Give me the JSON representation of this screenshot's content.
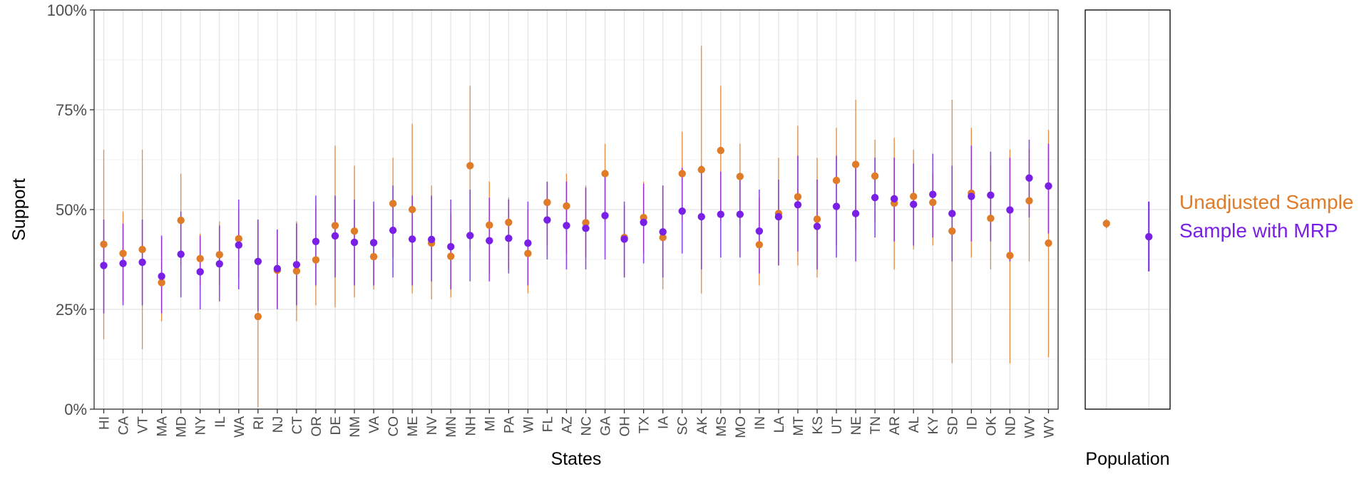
{
  "chart_data": {
    "type": "scatter",
    "xlabel": "States",
    "ylabel": "Support",
    "ylim": [
      0,
      100
    ],
    "y_ticks": [
      "0%",
      "25%",
      "50%",
      "75%",
      "100%"
    ],
    "y_tick_values": [
      0,
      25,
      50,
      75,
      100
    ],
    "grid": true,
    "categories": [
      "HI",
      "CA",
      "VT",
      "MA",
      "MD",
      "NY",
      "IL",
      "WA",
      "RI",
      "NJ",
      "CT",
      "OR",
      "DE",
      "NM",
      "VA",
      "CO",
      "ME",
      "NV",
      "MN",
      "NH",
      "MI",
      "PA",
      "WI",
      "FL",
      "AZ",
      "NC",
      "GA",
      "OH",
      "TX",
      "IA",
      "SC",
      "AK",
      "MS",
      "MO",
      "IN",
      "LA",
      "MT",
      "KS",
      "UT",
      "NE",
      "TN",
      "AR",
      "AL",
      "KY",
      "SD",
      "ID",
      "OK",
      "ND",
      "WV",
      "WY"
    ],
    "series": [
      {
        "name": "Unadjusted Sample",
        "color": "#E07B28",
        "values": [
          41.3,
          39.0,
          40.0,
          31.7,
          47.3,
          37.7,
          38.7,
          42.7,
          23.2,
          34.8,
          34.6,
          37.4,
          46.0,
          44.6,
          38.2,
          51.5,
          50.0,
          41.6,
          38.3,
          61.0,
          46.1,
          46.8,
          39.0,
          51.8,
          50.9,
          46.7,
          59.0,
          43.0,
          48.0,
          43.0,
          59.0,
          60.0,
          64.8,
          58.3,
          41.2,
          49.0,
          53.2,
          47.6,
          57.3,
          61.3,
          58.4,
          51.6,
          53.3,
          51.8,
          44.6,
          54.1,
          47.8,
          38.5,
          52.2,
          41.6
        ],
        "lower": [
          17.5,
          27.0,
          15.0,
          22.0,
          36.0,
          31.0,
          31.0,
          33.0,
          0.5,
          25.5,
          22.0,
          26.0,
          25.5,
          28.0,
          30.0,
          38.0,
          29.0,
          27.5,
          28.0,
          40.0,
          34.0,
          35.0,
          29.0,
          41.0,
          39.0,
          38.0,
          47.0,
          33.0,
          39.0,
          30.0,
          47.0,
          29.0,
          47.0,
          46.0,
          31.0,
          36.0,
          36.0,
          33.0,
          41.0,
          45.0,
          47.0,
          35.0,
          40.0,
          41.0,
          11.5,
          38.0,
          35.0,
          11.5,
          37.0,
          13.0
        ],
        "upper": [
          65.0,
          49.5,
          65.0,
          43.0,
          59.0,
          44.0,
          47.0,
          50.0,
          47.5,
          45.0,
          47.0,
          51.0,
          66.0,
          61.0,
          50.0,
          63.0,
          71.5,
          56.0,
          49.0,
          81.0,
          57.0,
          53.0,
          50.0,
          57.0,
          59.0,
          56.0,
          66.5,
          51.0,
          57.0,
          56.0,
          69.5,
          91.0,
          81.0,
          66.5,
          53.0,
          63.0,
          71.0,
          63.0,
          70.5,
          77.5,
          67.5,
          68.0,
          65.0,
          59.0,
          77.5,
          70.5,
          61.0,
          65.0,
          65.0,
          70.0
        ]
      },
      {
        "name": "Sample with MRP",
        "color": "#7A1FE6",
        "values": [
          36.0,
          36.5,
          36.8,
          33.3,
          38.8,
          34.4,
          36.4,
          41.1,
          37.0,
          35.2,
          36.2,
          42.0,
          43.4,
          41.8,
          41.7,
          44.8,
          42.6,
          42.5,
          40.7,
          43.5,
          42.2,
          42.8,
          41.6,
          47.4,
          46.0,
          45.3,
          48.5,
          42.6,
          46.8,
          44.4,
          49.6,
          48.2,
          48.8,
          48.8,
          44.6,
          48.2,
          51.2,
          45.8,
          50.8,
          49.0,
          53.0,
          52.7,
          51.3,
          53.8,
          49.0,
          53.3,
          53.6,
          49.9,
          57.9,
          55.9
        ],
        "lower": [
          24.0,
          26.0,
          26.0,
          24.0,
          28.0,
          25.0,
          27.0,
          30.0,
          24.5,
          25.0,
          26.0,
          31.0,
          33.0,
          31.0,
          31.0,
          33.0,
          31.0,
          32.0,
          30.0,
          32.0,
          32.0,
          34.0,
          31.0,
          37.5,
          35.0,
          35.0,
          37.5,
          33.0,
          36.5,
          33.0,
          39.0,
          35.0,
          38.0,
          38.0,
          34.0,
          36.0,
          39.5,
          35.0,
          38.0,
          37.0,
          43.0,
          42.0,
          41.0,
          43.0,
          37.0,
          42.0,
          42.0,
          37.0,
          48.0,
          44.0
        ],
        "upper": [
          47.5,
          46.5,
          47.5,
          43.5,
          49.5,
          43.5,
          46.0,
          52.5,
          47.5,
          45.0,
          46.5,
          53.5,
          53.5,
          52.5,
          52.0,
          56.0,
          53.5,
          53.5,
          52.5,
          55.0,
          53.0,
          52.5,
          52.0,
          57.0,
          57.0,
          55.5,
          59.5,
          52.0,
          56.5,
          56.0,
          60.5,
          61.0,
          59.5,
          59.0,
          55.0,
          57.5,
          63.5,
          57.5,
          63.5,
          61.5,
          63.0,
          63.0,
          61.5,
          64.0,
          61.0,
          66.0,
          64.5,
          63.0,
          67.5,
          66.5
        ]
      }
    ],
    "population": {
      "label": "Population",
      "unadjusted": {
        "value": 46.5,
        "lower": 45.3,
        "upper": 47.6
      },
      "mrp": {
        "value": 43.2,
        "lower": 34.5,
        "upper": 52.0
      }
    },
    "legend": {
      "placement": "right"
    }
  }
}
